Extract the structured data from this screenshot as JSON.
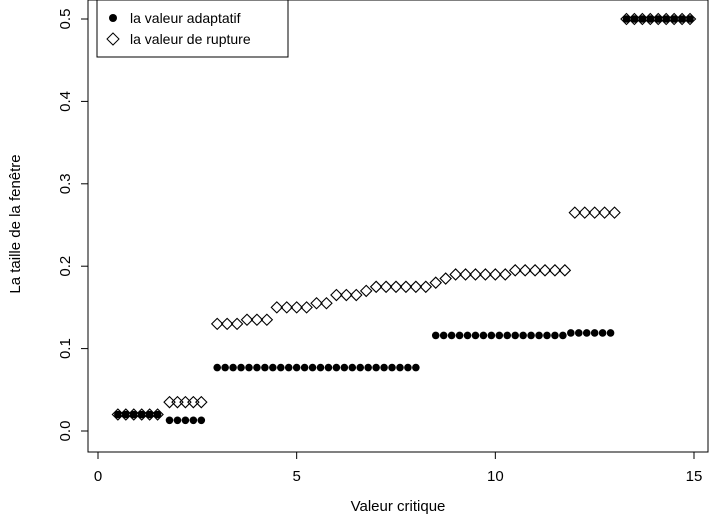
{
  "chart_data": {
    "type": "scatter",
    "title": "",
    "xlabel": "Valeur critique",
    "ylabel": "La taille de la fenêtre",
    "xlim": [
      0,
      15
    ],
    "ylim": [
      0,
      0.5
    ],
    "x_ticks": [
      "0",
      "5",
      "10",
      "15"
    ],
    "y_ticks": [
      "0.0",
      "0.1",
      "0.2",
      "0.3",
      "0.4",
      "0.5"
    ],
    "grid": false,
    "legend_position": "top-left",
    "series": [
      {
        "name": "la valeur adaptatif",
        "marker": "filled-circle",
        "color": "#000000",
        "points": [
          [
            0.5,
            0.02
          ],
          [
            0.7,
            0.02
          ],
          [
            0.9,
            0.02
          ],
          [
            1.1,
            0.02
          ],
          [
            1.3,
            0.02
          ],
          [
            1.5,
            0.02
          ],
          [
            1.8,
            0.013
          ],
          [
            2.0,
            0.013
          ],
          [
            2.2,
            0.013
          ],
          [
            2.4,
            0.013
          ],
          [
            2.6,
            0.013
          ],
          [
            3.0,
            0.077
          ],
          [
            3.2,
            0.077
          ],
          [
            3.4,
            0.077
          ],
          [
            3.6,
            0.077
          ],
          [
            3.8,
            0.077
          ],
          [
            4.0,
            0.077
          ],
          [
            4.2,
            0.077
          ],
          [
            4.4,
            0.077
          ],
          [
            4.6,
            0.077
          ],
          [
            4.8,
            0.077
          ],
          [
            5.0,
            0.077
          ],
          [
            5.2,
            0.077
          ],
          [
            5.4,
            0.077
          ],
          [
            5.6,
            0.077
          ],
          [
            5.8,
            0.077
          ],
          [
            6.0,
            0.077
          ],
          [
            6.2,
            0.077
          ],
          [
            6.4,
            0.077
          ],
          [
            6.6,
            0.077
          ],
          [
            6.8,
            0.077
          ],
          [
            7.0,
            0.077
          ],
          [
            7.2,
            0.077
          ],
          [
            7.4,
            0.077
          ],
          [
            7.6,
            0.077
          ],
          [
            7.8,
            0.077
          ],
          [
            8.0,
            0.077
          ],
          [
            8.5,
            0.116
          ],
          [
            8.7,
            0.116
          ],
          [
            8.9,
            0.116
          ],
          [
            9.1,
            0.116
          ],
          [
            9.3,
            0.116
          ],
          [
            9.5,
            0.116
          ],
          [
            9.7,
            0.116
          ],
          [
            9.9,
            0.116
          ],
          [
            10.1,
            0.116
          ],
          [
            10.3,
            0.116
          ],
          [
            10.5,
            0.116
          ],
          [
            10.7,
            0.116
          ],
          [
            10.9,
            0.116
          ],
          [
            11.1,
            0.116
          ],
          [
            11.3,
            0.116
          ],
          [
            11.5,
            0.116
          ],
          [
            11.7,
            0.116
          ],
          [
            11.9,
            0.119
          ],
          [
            12.1,
            0.119
          ],
          [
            12.3,
            0.119
          ],
          [
            12.5,
            0.119
          ],
          [
            12.7,
            0.119
          ],
          [
            12.9,
            0.119
          ],
          [
            13.3,
            0.5
          ],
          [
            13.5,
            0.5
          ],
          [
            13.7,
            0.5
          ],
          [
            13.9,
            0.5
          ],
          [
            14.1,
            0.5
          ],
          [
            14.3,
            0.5
          ],
          [
            14.5,
            0.5
          ],
          [
            14.7,
            0.5
          ],
          [
            14.9,
            0.5
          ]
        ]
      },
      {
        "name": "la valeur de rupture",
        "marker": "open-diamond",
        "color": "#000000",
        "points": [
          [
            0.5,
            0.02
          ],
          [
            0.7,
            0.02
          ],
          [
            0.9,
            0.02
          ],
          [
            1.1,
            0.02
          ],
          [
            1.3,
            0.02
          ],
          [
            1.5,
            0.02
          ],
          [
            1.8,
            0.035
          ],
          [
            2.0,
            0.035
          ],
          [
            2.2,
            0.035
          ],
          [
            2.4,
            0.035
          ],
          [
            2.6,
            0.035
          ],
          [
            3.0,
            0.13
          ],
          [
            3.25,
            0.13
          ],
          [
            3.5,
            0.13
          ],
          [
            3.75,
            0.135
          ],
          [
            4.0,
            0.135
          ],
          [
            4.25,
            0.135
          ],
          [
            4.5,
            0.15
          ],
          [
            4.75,
            0.15
          ],
          [
            5.0,
            0.15
          ],
          [
            5.25,
            0.15
          ],
          [
            5.5,
            0.155
          ],
          [
            5.75,
            0.155
          ],
          [
            6.0,
            0.165
          ],
          [
            6.25,
            0.165
          ],
          [
            6.5,
            0.165
          ],
          [
            6.75,
            0.17
          ],
          [
            7.0,
            0.175
          ],
          [
            7.25,
            0.175
          ],
          [
            7.5,
            0.175
          ],
          [
            7.75,
            0.175
          ],
          [
            8.0,
            0.175
          ],
          [
            8.25,
            0.175
          ],
          [
            8.5,
            0.18
          ],
          [
            8.75,
            0.185
          ],
          [
            9.0,
            0.19
          ],
          [
            9.25,
            0.19
          ],
          [
            9.5,
            0.19
          ],
          [
            9.75,
            0.19
          ],
          [
            10.0,
            0.19
          ],
          [
            10.25,
            0.19
          ],
          [
            10.5,
            0.195
          ],
          [
            10.75,
            0.195
          ],
          [
            11.0,
            0.195
          ],
          [
            11.25,
            0.195
          ],
          [
            11.5,
            0.195
          ],
          [
            11.75,
            0.195
          ],
          [
            12.0,
            0.265
          ],
          [
            12.25,
            0.265
          ],
          [
            12.5,
            0.265
          ],
          [
            12.75,
            0.265
          ],
          [
            13.0,
            0.265
          ],
          [
            13.3,
            0.5
          ],
          [
            13.5,
            0.5
          ],
          [
            13.7,
            0.5
          ],
          [
            13.9,
            0.5
          ],
          [
            14.1,
            0.5
          ],
          [
            14.3,
            0.5
          ],
          [
            14.5,
            0.5
          ],
          [
            14.7,
            0.5
          ],
          [
            14.9,
            0.5
          ]
        ]
      }
    ]
  }
}
